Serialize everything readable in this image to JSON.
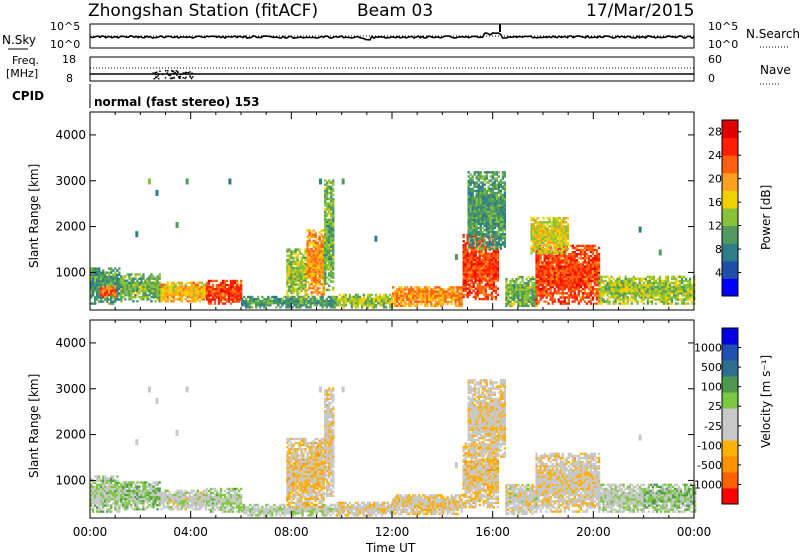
{
  "header": {
    "station": "Zhongshan Station (fitACF)",
    "beam": "Beam 03",
    "date": "17/Mar/2015"
  },
  "top_panels": {
    "nsky_label": "N.Sky",
    "nsky_ticks": [
      "10^5",
      "10^0"
    ],
    "nsearch_label": "N.Search",
    "nsearch_ticks": [
      "10^5",
      "10^0"
    ],
    "freq_label": "Freq.",
    "freq_unit": "[MHz]",
    "freq_ticks": [
      "18",
      "8"
    ],
    "nave_label": "Nave",
    "nave_ticks": [
      "60",
      "0"
    ],
    "cpid_label": "CPID",
    "cpid_value": "normal (fast stereo) 153"
  },
  "colors": {
    "power": [
      "#0000ff",
      "#1f4fa8",
      "#2e7e8a",
      "#4f9a5c",
      "#86c23a",
      "#f0d000",
      "#ffa020",
      "#ff6010",
      "#ff2000",
      "#e00000"
    ],
    "velocity": [
      "#ff0000",
      "#ff6000",
      "#ff9000",
      "#ffb000",
      "#c8c8c8",
      "#c8c8c8",
      "#7cc840",
      "#4d9a4f",
      "#2e6e8e",
      "#2050b0",
      "#0000e0"
    ]
  },
  "chart_data": [
    {
      "type": "heatmap",
      "name": "power",
      "xlabel": "",
      "ylabel": "Slant Range [km]",
      "x_ticks": [
        "00:00",
        "04:00",
        "08:00",
        "12:00",
        "16:00",
        "20:00",
        "00:00"
      ],
      "xlim": [
        0,
        24
      ],
      "ylim": [
        180,
        4500
      ],
      "y_ticks": [
        1000,
        2000,
        3000,
        4000
      ],
      "colorbar": {
        "label": "Power [dB]",
        "ticks": [
          "4",
          "8",
          "12",
          "16",
          "20",
          "24",
          "28"
        ],
        "range": [
          0,
          30
        ]
      },
      "scatter_regions": [
        {
          "t0": 0.0,
          "t1": 1.2,
          "r0": 300,
          "r1": 1100,
          "value": 10
        },
        {
          "t0": 0.4,
          "t1": 1.0,
          "r0": 450,
          "r1": 700,
          "value": 22
        },
        {
          "t0": 1.2,
          "t1": 2.8,
          "r0": 350,
          "r1": 950,
          "value": 12
        },
        {
          "t0": 2.8,
          "t1": 4.6,
          "r0": 350,
          "r1": 800,
          "value": 18
        },
        {
          "t0": 4.6,
          "t1": 6.0,
          "r0": 300,
          "r1": 800,
          "value": 24
        },
        {
          "t0": 6.0,
          "t1": 9.8,
          "r0": 220,
          "r1": 450,
          "value": 10
        },
        {
          "t0": 7.8,
          "t1": 8.6,
          "r0": 400,
          "r1": 1500,
          "value": 14
        },
        {
          "t0": 8.6,
          "t1": 9.3,
          "r0": 500,
          "r1": 1900,
          "value": 20
        },
        {
          "t0": 9.3,
          "t1": 9.7,
          "r0": 600,
          "r1": 3000,
          "value": 12
        },
        {
          "t0": 9.8,
          "t1": 12.0,
          "r0": 220,
          "r1": 500,
          "value": 14
        },
        {
          "t0": 12.0,
          "t1": 14.8,
          "r0": 250,
          "r1": 700,
          "value": 20
        },
        {
          "t0": 14.8,
          "t1": 16.2,
          "r0": 400,
          "r1": 1800,
          "value": 24
        },
        {
          "t0": 15.0,
          "t1": 16.5,
          "r0": 1500,
          "r1": 3200,
          "value": 10
        },
        {
          "t0": 16.5,
          "t1": 17.7,
          "r0": 250,
          "r1": 900,
          "value": 12
        },
        {
          "t0": 17.7,
          "t1": 20.2,
          "r0": 300,
          "r1": 1600,
          "value": 24
        },
        {
          "t0": 17.5,
          "t1": 19.0,
          "r0": 1400,
          "r1": 2200,
          "value": 16
        },
        {
          "t0": 20.2,
          "t1": 24.0,
          "r0": 300,
          "r1": 900,
          "value": 14
        }
      ],
      "sparse": [
        {
          "t": 2.3,
          "r": 3050
        },
        {
          "t": 2.6,
          "r": 2800
        },
        {
          "t": 3.8,
          "r": 3050
        },
        {
          "t": 5.5,
          "r": 3050
        },
        {
          "t": 9.1,
          "r": 3050
        },
        {
          "t": 10.0,
          "r": 3050
        },
        {
          "t": 1.8,
          "r": 1900
        },
        {
          "t": 3.4,
          "r": 2100
        },
        {
          "t": 21.8,
          "r": 2000
        },
        {
          "t": 22.6,
          "r": 1500
        },
        {
          "t": 14.5,
          "r": 1400
        },
        {
          "t": 11.3,
          "r": 1800
        }
      ]
    },
    {
      "type": "heatmap",
      "name": "velocity",
      "xlabel": "Time UT",
      "ylabel": "Slant Range [km]",
      "x_ticks": [
        "00:00",
        "04:00",
        "08:00",
        "12:00",
        "16:00",
        "20:00",
        "00:00"
      ],
      "xlim": [
        0,
        24
      ],
      "ylim": [
        180,
        4500
      ],
      "y_ticks": [
        1000,
        2000,
        3000,
        4000
      ],
      "colorbar": {
        "label": "Velocity [m s⁻¹]",
        "ticks": [
          "-1000",
          "-500",
          "-100",
          "-25",
          "25",
          "100",
          "500",
          "1000"
        ],
        "range": [
          -1200,
          1200
        ]
      },
      "scatter_regions": [
        {
          "t0": 0.0,
          "t1": 1.2,
          "r0": 300,
          "r1": 1100,
          "value": 100
        },
        {
          "t0": 1.2,
          "t1": 2.8,
          "r0": 350,
          "r1": 950,
          "value": 150
        },
        {
          "t0": 2.8,
          "t1": 4.6,
          "r0": 350,
          "r1": 800,
          "value": -80
        },
        {
          "t0": 4.6,
          "t1": 6.0,
          "r0": 300,
          "r1": 800,
          "value": 60
        },
        {
          "t0": 6.0,
          "t1": 9.8,
          "r0": 220,
          "r1": 450,
          "value": 0
        },
        {
          "t0": 7.8,
          "t1": 9.3,
          "r0": 400,
          "r1": 1900,
          "value": -300
        },
        {
          "t0": 9.3,
          "t1": 9.7,
          "r0": 600,
          "r1": 3000,
          "value": -200
        },
        {
          "t0": 9.8,
          "t1": 12.0,
          "r0": 220,
          "r1": 500,
          "value": -200
        },
        {
          "t0": 12.0,
          "t1": 14.8,
          "r0": 250,
          "r1": 700,
          "value": -250
        },
        {
          "t0": 14.8,
          "t1": 16.2,
          "r0": 400,
          "r1": 1800,
          "value": -300
        },
        {
          "t0": 15.0,
          "t1": 16.5,
          "r0": 1500,
          "r1": 3200,
          "value": -200
        },
        {
          "t0": 16.5,
          "t1": 17.7,
          "r0": 250,
          "r1": 900,
          "value": -150
        },
        {
          "t0": 17.7,
          "t1": 20.2,
          "r0": 300,
          "r1": 1600,
          "value": -200
        },
        {
          "t0": 20.2,
          "t1": 22.0,
          "r0": 300,
          "r1": 900,
          "value": 0
        },
        {
          "t0": 22.0,
          "t1": 24.0,
          "r0": 300,
          "r1": 900,
          "value": 150
        }
      ],
      "sparse": [
        {
          "t": 2.3,
          "r": 3050
        },
        {
          "t": 2.6,
          "r": 2800
        },
        {
          "t": 3.8,
          "r": 3050
        },
        {
          "t": 9.1,
          "r": 3050
        },
        {
          "t": 10.0,
          "r": 3050
        },
        {
          "t": 1.8,
          "r": 1900
        },
        {
          "t": 3.4,
          "r": 2100
        },
        {
          "t": 21.8,
          "r": 2000
        },
        {
          "t": 14.5,
          "r": 1400
        }
      ]
    }
  ]
}
